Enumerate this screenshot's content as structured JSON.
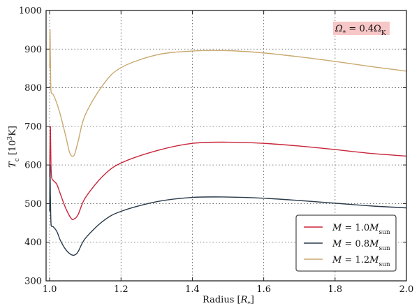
{
  "chart_data": {
    "type": "line",
    "xlabel": "Radius [",
    "xlabel_unit": "R",
    "xlabel_unit_sub": "*",
    "xlabel_close": "]",
    "ylabel": "T",
    "ylabel_sub": "c",
    "ylabel_unit_open": " [10",
    "ylabel_unit_sup": "3",
    "ylabel_unit_close": "K]",
    "xlim": [
      0.99,
      2.0
    ],
    "ylim": [
      300,
      1000
    ],
    "x_ticks": [
      1.0,
      1.2,
      1.4,
      1.6,
      1.8,
      2.0
    ],
    "x_tick_labels": [
      "1.0",
      "1.2",
      "1.4",
      "1.6",
      "1.8",
      "2.0"
    ],
    "y_ticks": [
      300,
      400,
      500,
      600,
      700,
      800,
      900,
      1000
    ],
    "y_tick_labels": [
      "300",
      "400",
      "500",
      "600",
      "700",
      "800",
      "900",
      "1000"
    ],
    "grid": true,
    "grid_style": "dotted",
    "legend_position": "bottom-right",
    "annotation": {
      "text": "Ω* = 0.4ΩK",
      "parts": [
        "Ω",
        "*",
        " = 0.4Ω",
        "K"
      ],
      "position": "top-right",
      "background": "#f7c6c6"
    },
    "series": [
      {
        "key": "m10",
        "name": "M = 1.0Msun",
        "legend_parts": [
          "M",
          " = 1.0",
          "M",
          "sun"
        ],
        "color": "#c8263a",
        "x": [
          1.0,
          1.001,
          1.002,
          1.003,
          1.004,
          1.006,
          1.01,
          1.02,
          1.03,
          1.045,
          1.06,
          1.068,
          1.08,
          1.1,
          1.15,
          1.2,
          1.3,
          1.4,
          1.5,
          1.6,
          1.7,
          1.8,
          1.9,
          2.0
        ],
        "y": [
          570,
          650,
          700,
          640,
          590,
          566,
          560,
          550,
          525,
          488,
          462,
          460,
          472,
          515,
          572,
          605,
          637,
          656,
          659,
          656,
          649,
          640,
          630,
          623
        ]
      },
      {
        "key": "m08",
        "name": "M = 0.8Msun",
        "legend_parts": [
          "M",
          " = 0.8",
          "M",
          "sun"
        ],
        "color": "#2a3a4a",
        "x": [
          1.0,
          1.001,
          1.002,
          1.003,
          1.004,
          1.006,
          1.01,
          1.02,
          1.03,
          1.045,
          1.06,
          1.07,
          1.08,
          1.1,
          1.15,
          1.2,
          1.3,
          1.4,
          1.5,
          1.6,
          1.7,
          1.8,
          1.9,
          2.0
        ],
        "y": [
          480,
          600,
          520,
          470,
          445,
          441,
          440,
          428,
          405,
          381,
          368,
          367,
          376,
          410,
          455,
          480,
          505,
          516,
          517,
          514,
          508,
          501,
          494,
          489
        ]
      },
      {
        "key": "m12",
        "name": "M = 1.2Msun",
        "legend_parts": [
          "M",
          " = 1.2",
          "M",
          "sun"
        ],
        "color": "#c9a96e",
        "x": [
          1.0,
          1.001,
          1.002,
          1.003,
          1.004,
          1.006,
          1.01,
          1.02,
          1.03,
          1.045,
          1.055,
          1.062,
          1.07,
          1.08,
          1.1,
          1.15,
          1.2,
          1.3,
          1.4,
          1.5,
          1.6,
          1.7,
          1.8,
          1.9,
          2.0
        ],
        "y": [
          850,
          950,
          880,
          810,
          790,
          785,
          782,
          760,
          730,
          675,
          635,
          623,
          628,
          662,
          730,
          808,
          852,
          885,
          895,
          896,
          890,
          880,
          868,
          855,
          843
        ]
      }
    ]
  }
}
